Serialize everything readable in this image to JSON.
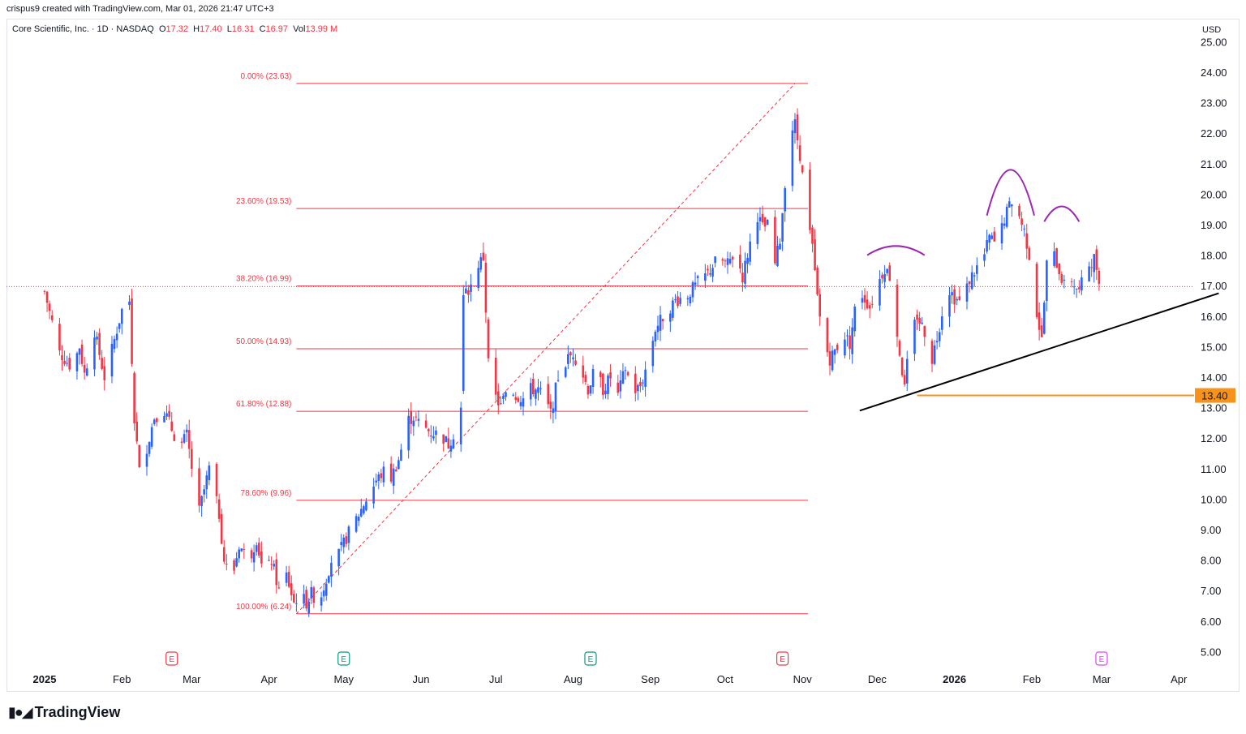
{
  "attribution": "crispus9 created with TradingView.com, Mar 01, 2026 21:47 UTC+3",
  "legend": {
    "symbol": "Core Scientific, Inc. · 1D · NASDAQ",
    "o_label": "O",
    "o": "17.32",
    "h_label": "H",
    "h": "17.40",
    "l_label": "L",
    "l": "16.31",
    "c_label": "C",
    "c": "16.97",
    "vol_label": "Vol",
    "vol": "13.99 M"
  },
  "currency": "USD",
  "brand": "TradingView",
  "colors": {
    "up": "#2962ff",
    "down": "#f23645",
    "fib": "#f23645",
    "support": "#f7931a",
    "pattern": "#9c27b0",
    "trendline": "#000000"
  },
  "chart_data": {
    "type": "candlestick",
    "y_ticks": [
      "25.00",
      "24.00",
      "23.00",
      "22.00",
      "21.00",
      "20.00",
      "19.00",
      "18.00",
      "17.00",
      "16.00",
      "15.00",
      "14.00",
      "13.00",
      "12.00",
      "11.00",
      "10.00",
      "9.00",
      "8.00",
      "7.00",
      "6.00",
      "5.00"
    ],
    "ylim": [
      4.6,
      25.4
    ],
    "x_labels": [
      {
        "label": "2025",
        "bold": true,
        "day": 0
      },
      {
        "label": "Feb",
        "bold": false,
        "day": 31
      },
      {
        "label": "Mar",
        "bold": false,
        "day": 59
      },
      {
        "label": "Apr",
        "bold": false,
        "day": 90
      },
      {
        "label": "May",
        "bold": false,
        "day": 120
      },
      {
        "label": "Jun",
        "bold": false,
        "day": 151
      },
      {
        "label": "Jul",
        "bold": false,
        "day": 181
      },
      {
        "label": "Aug",
        "bold": false,
        "day": 212
      },
      {
        "label": "Sep",
        "bold": false,
        "day": 243
      },
      {
        "label": "Oct",
        "bold": false,
        "day": 273
      },
      {
        "label": "Nov",
        "bold": false,
        "day": 304
      },
      {
        "label": "Dec",
        "bold": false,
        "day": 334
      },
      {
        "label": "2026",
        "bold": true,
        "day": 365
      },
      {
        "label": "Feb",
        "bold": false,
        "day": 396
      },
      {
        "label": "Mar",
        "bold": false,
        "day": 424
      },
      {
        "label": "Apr",
        "bold": false,
        "day": 455
      }
    ],
    "earnings_markers": [
      {
        "label": "E",
        "day": 51,
        "color": "#f23645"
      },
      {
        "label": "E",
        "day": 120,
        "color": "#089981"
      },
      {
        "label": "E",
        "day": 219,
        "color": "#089981"
      },
      {
        "label": "E",
        "day": 296,
        "color": "#f23645"
      },
      {
        "label": "E",
        "day": 424,
        "color": "#e040fb"
      }
    ],
    "fibonacci": {
      "start_day": 101,
      "end_day": 301,
      "levels": [
        {
          "label": "0.00% (23.63)",
          "price": 23.63
        },
        {
          "label": "23.60% (19.53)",
          "price": 19.53
        },
        {
          "label": "38.20% (16.99)",
          "price": 16.99
        },
        {
          "label": "50.00% (14.93)",
          "price": 14.93
        },
        {
          "label": "61.80% (12.88)",
          "price": 12.88
        },
        {
          "label": "78.60% (9.96)",
          "price": 9.96
        },
        {
          "label": "100.00% (6.24)",
          "price": 6.24
        }
      ],
      "diagonal": {
        "from": [
          101,
          6.24
        ],
        "to": [
          301,
          23.63
        ]
      }
    },
    "support_line": {
      "price": 13.4,
      "label": "13.40",
      "from_day": 350
    },
    "trendline": {
      "from": [
        327,
        12.9
      ],
      "to": [
        471,
        16.75
      ]
    },
    "last_price": 16.97,
    "head_and_shoulders": [
      {
        "x1": 330,
        "x2": 353,
        "base": 18.0,
        "top": 18.3
      },
      {
        "x1": 378,
        "x2": 397,
        "base": 19.3,
        "top": 20.8
      },
      {
        "x1": 401,
        "x2": 415,
        "base": 19.1,
        "top": 19.6
      }
    ],
    "anchors": [
      [
        0,
        16.8
      ],
      [
        6,
        14.8
      ],
      [
        11,
        14.3
      ],
      [
        14,
        15.0
      ],
      [
        16,
        14.1
      ],
      [
        20,
        15.5
      ],
      [
        24,
        14.0
      ],
      [
        27,
        14.9
      ],
      [
        31,
        16.2
      ],
      [
        34,
        16.5
      ],
      [
        36,
        12.7
      ],
      [
        38,
        10.9
      ],
      [
        41,
        11.7
      ],
      [
        44,
        12.7
      ],
      [
        48,
        12.9
      ],
      [
        52,
        12.1
      ],
      [
        55,
        11.8
      ],
      [
        57,
        12.1
      ],
      [
        60,
        10.5
      ],
      [
        62,
        9.6
      ],
      [
        66,
        11.0
      ],
      [
        70,
        9.5
      ],
      [
        72,
        8.0
      ],
      [
        75,
        7.3
      ],
      [
        78,
        8.5
      ],
      [
        82,
        8.0
      ],
      [
        85,
        8.7
      ],
      [
        88,
        7.4
      ],
      [
        91,
        8.0
      ],
      [
        94,
        7.0
      ],
      [
        97,
        7.5
      ],
      [
        100,
        6.6
      ],
      [
        102,
        6.9
      ],
      [
        105,
        6.6
      ],
      [
        107,
        6.9
      ],
      [
        110,
        6.6
      ],
      [
        113,
        7.4
      ],
      [
        115,
        8.0
      ],
      [
        118,
        8.2
      ],
      [
        122,
        8.9
      ],
      [
        126,
        9.5
      ],
      [
        129,
        10.0
      ],
      [
        133,
        10.6
      ],
      [
        136,
        10.9
      ],
      [
        139,
        10.7
      ],
      [
        142,
        11.3
      ],
      [
        146,
        12.6
      ],
      [
        148,
        12.7
      ],
      [
        151,
        12.4
      ],
      [
        155,
        12.2
      ],
      [
        159,
        12.1
      ],
      [
        162,
        11.8
      ],
      [
        165,
        12.3
      ],
      [
        167,
        13.0
      ],
      [
        168,
        16.6
      ],
      [
        171,
        17.0
      ],
      [
        174,
        17.7
      ],
      [
        176,
        17.9
      ],
      [
        178,
        14.5
      ],
      [
        180,
        13.5
      ],
      [
        183,
        13.0
      ],
      [
        186,
        13.8
      ],
      [
        189,
        13.4
      ],
      [
        192,
        13.3
      ],
      [
        195,
        13.6
      ],
      [
        198,
        13.6
      ],
      [
        201,
        13.2
      ],
      [
        203,
        12.8
      ],
      [
        206,
        14.0
      ],
      [
        210,
        14.6
      ],
      [
        212,
        14.8
      ],
      [
        215,
        14.3
      ],
      [
        218,
        13.6
      ],
      [
        221,
        14.3
      ],
      [
        224,
        13.6
      ],
      [
        227,
        14.0
      ],
      [
        230,
        13.4
      ],
      [
        233,
        14.3
      ],
      [
        236,
        13.5
      ],
      [
        239,
        13.7
      ],
      [
        242,
        14.5
      ],
      [
        245,
        15.6
      ],
      [
        249,
        16.1
      ],
      [
        253,
        16.5
      ],
      [
        258,
        16.7
      ],
      [
        262,
        17.1
      ],
      [
        266,
        17.4
      ],
      [
        270,
        17.9
      ],
      [
        274,
        17.7
      ],
      [
        277,
        18.1
      ],
      [
        280,
        17.3
      ],
      [
        283,
        18.4
      ],
      [
        285,
        19.5
      ],
      [
        288,
        18.9
      ],
      [
        291,
        19.0
      ],
      [
        293,
        17.7
      ],
      [
        295,
        18.5
      ],
      [
        297,
        20.4
      ],
      [
        299,
        22.0
      ],
      [
        301,
        22.3
      ],
      [
        303,
        21.3
      ],
      [
        306,
        19.2
      ],
      [
        308,
        18.2
      ],
      [
        310,
        16.6
      ],
      [
        312,
        15.3
      ],
      [
        315,
        14.6
      ],
      [
        318,
        15.0
      ],
      [
        320,
        15.5
      ],
      [
        323,
        15.1
      ],
      [
        325,
        16.2
      ],
      [
        328,
        16.7
      ],
      [
        331,
        16.3
      ],
      [
        334,
        17.0
      ],
      [
        337,
        17.6
      ],
      [
        339,
        17.3
      ],
      [
        341,
        16.0
      ],
      [
        343,
        14.8
      ],
      [
        345,
        13.6
      ],
      [
        347,
        15.2
      ],
      [
        350,
        16.0
      ],
      [
        353,
        15.5
      ],
      [
        356,
        14.6
      ],
      [
        359,
        15.7
      ],
      [
        362,
        17.0
      ],
      [
        365,
        16.6
      ],
      [
        368,
        16.4
      ],
      [
        371,
        17.2
      ],
      [
        374,
        17.6
      ],
      [
        377,
        18.0
      ],
      [
        379,
        18.6
      ],
      [
        382,
        18.3
      ],
      [
        385,
        19.2
      ],
      [
        388,
        19.8
      ],
      [
        390,
        19.5
      ],
      [
        393,
        18.8
      ],
      [
        396,
        17.6
      ],
      [
        398,
        16.1
      ],
      [
        400,
        15.2
      ],
      [
        402,
        17.7
      ],
      [
        404,
        18.2
      ],
      [
        407,
        17.5
      ],
      [
        409,
        17.0
      ],
      [
        412,
        17.2
      ],
      [
        415,
        16.8
      ],
      [
        418,
        17.6
      ],
      [
        421,
        17.9
      ],
      [
        424,
        16.97
      ]
    ],
    "gaps": [
      [
        35,
        36
      ],
      [
        167,
        168
      ],
      [
        177,
        178
      ]
    ]
  }
}
